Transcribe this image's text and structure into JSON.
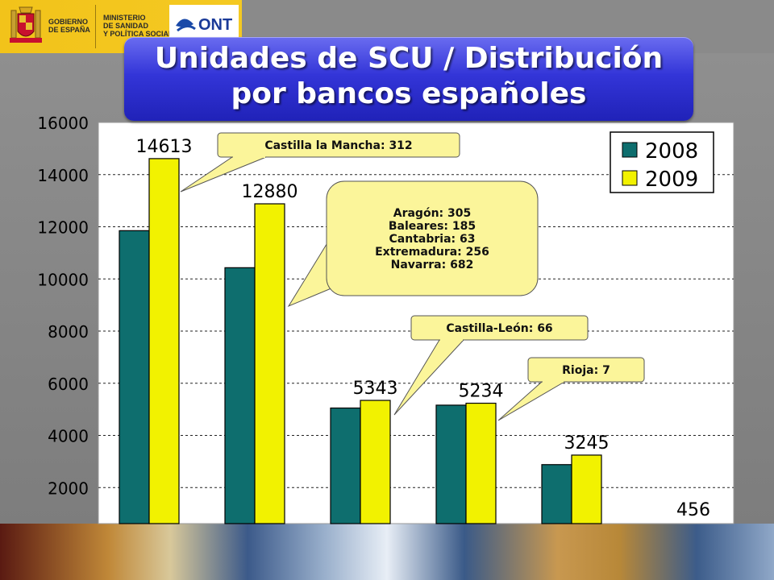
{
  "header": {
    "gov_line1": "GOBIERNO",
    "gov_line2": "DE ESPAÑA",
    "ministry_line1": "MINISTERIO",
    "ministry_line2": "DE SANIDAD",
    "ministry_line3": "Y POLÍTICA SOCIAL",
    "logo_text": "ONT"
  },
  "title": {
    "line1": "Unidades de SCU / Distribución",
    "line2": "por bancos españoles"
  },
  "colors": {
    "series_2008": "#0e6e6e",
    "series_2009": "#f2f200",
    "plot_bg": "#ffffff",
    "callout_bg": "#fbf59a",
    "title_bg": "#3335d8"
  },
  "chart_data": {
    "type": "bar",
    "categories": [
      "",
      "",
      "",
      "",
      "",
      ""
    ],
    "series": [
      {
        "name": "2008",
        "values": [
          11850,
          10430,
          5050,
          5160,
          2880,
          null
        ]
      },
      {
        "name": "2009",
        "values": [
          14613,
          12880,
          5343,
          5234,
          3245,
          456
        ]
      }
    ],
    "data_labels": [
      "14613",
      "12880",
      "5343",
      "5234",
      "3245",
      "456"
    ],
    "y_ticks": [
      "16000",
      "14000",
      "12000",
      "10000",
      "8000",
      "6000",
      "4000",
      "2000"
    ],
    "ylim": [
      0,
      16000
    ],
    "grid": true,
    "legend": "top-right",
    "annotations": [
      {
        "lines": [
          "Castilla la Mancha: 312"
        ],
        "target_bar": 0
      },
      {
        "lines": [
          "Aragón: 305",
          "Baleares: 185",
          "Cantabria: 63",
          "Extremadura: 256",
          "Navarra: 682"
        ],
        "target_bar": 1
      },
      {
        "lines": [
          "Castilla-León: 66"
        ],
        "target_bar": 2
      },
      {
        "lines": [
          "Rioja: 7"
        ],
        "target_bar": 3
      }
    ]
  }
}
